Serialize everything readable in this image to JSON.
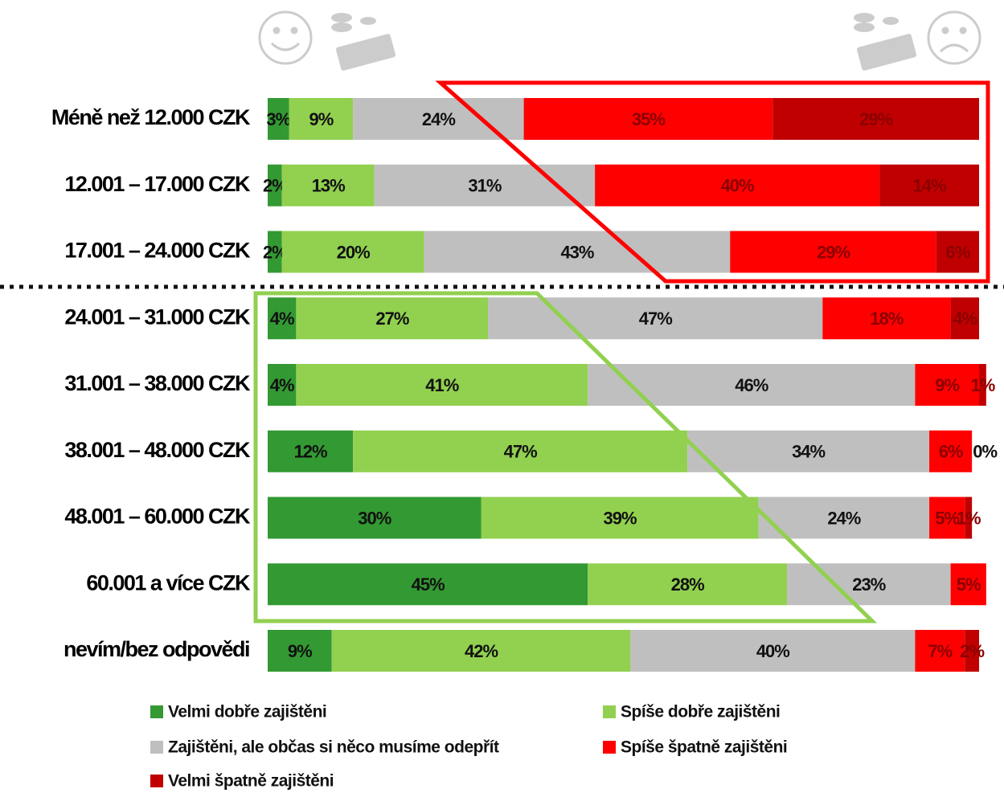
{
  "chart_data": {
    "type": "stacked-bar-horizontal",
    "categories": [
      "Méně než 12.000 CZK",
      "12.001 – 17.000 CZK",
      "17.001 – 24.000 CZK",
      "24.001 – 31.000 CZK",
      "31.001 – 38.000 CZK",
      "38.001 – 48.000 CZK",
      "48.001 – 60.000 CZK",
      "60.001 a více CZK",
      "nevím/bez odpovědi"
    ],
    "xlim": [
      0,
      100
    ],
    "series": [
      {
        "name": "Velmi dobře zajištěni",
        "color": "#339933",
        "values": [
          3,
          2,
          2,
          4,
          4,
          12,
          30,
          45,
          9
        ],
        "value_labels": [
          "3%",
          "2%",
          "2%",
          "4%",
          "4%",
          "12%",
          "30%",
          "45%",
          "9%"
        ]
      },
      {
        "name": "Spíše dobře zajištěni",
        "color": "#92d050",
        "values": [
          9,
          13,
          20,
          27,
          41,
          47,
          39,
          28,
          42
        ],
        "value_labels": [
          "9%",
          "13%",
          "20%",
          "27%",
          "41%",
          "47%",
          "39%",
          "28%",
          "42%"
        ]
      },
      {
        "name": "Zajištěni, ale občas si něco musíme odepřít",
        "color": "#bfbfbf",
        "values": [
          24,
          31,
          43,
          47,
          46,
          34,
          24,
          23,
          40
        ],
        "value_labels": [
          "24%",
          "31%",
          "43%",
          "47%",
          "46%",
          "34%",
          "24%",
          "23%",
          "40%"
        ]
      },
      {
        "name": "Spíše špatně zajištěni",
        "color": "#ff0000",
        "values": [
          35,
          40,
          29,
          18,
          9,
          6,
          5,
          5,
          7
        ],
        "value_labels": [
          "35%",
          "40%",
          "29%",
          "18%",
          "9%",
          "6%",
          "5%",
          "5%",
          "7%"
        ]
      },
      {
        "name": "Velmi špatně zajištěni",
        "color": "#c00000",
        "values": [
          29,
          14,
          6,
          4,
          1,
          0,
          1,
          null,
          2
        ],
        "value_labels": [
          "29%",
          "14%",
          "6%",
          "4%",
          "1%",
          "0%",
          "1%",
          null,
          "2%"
        ]
      }
    ]
  }
}
